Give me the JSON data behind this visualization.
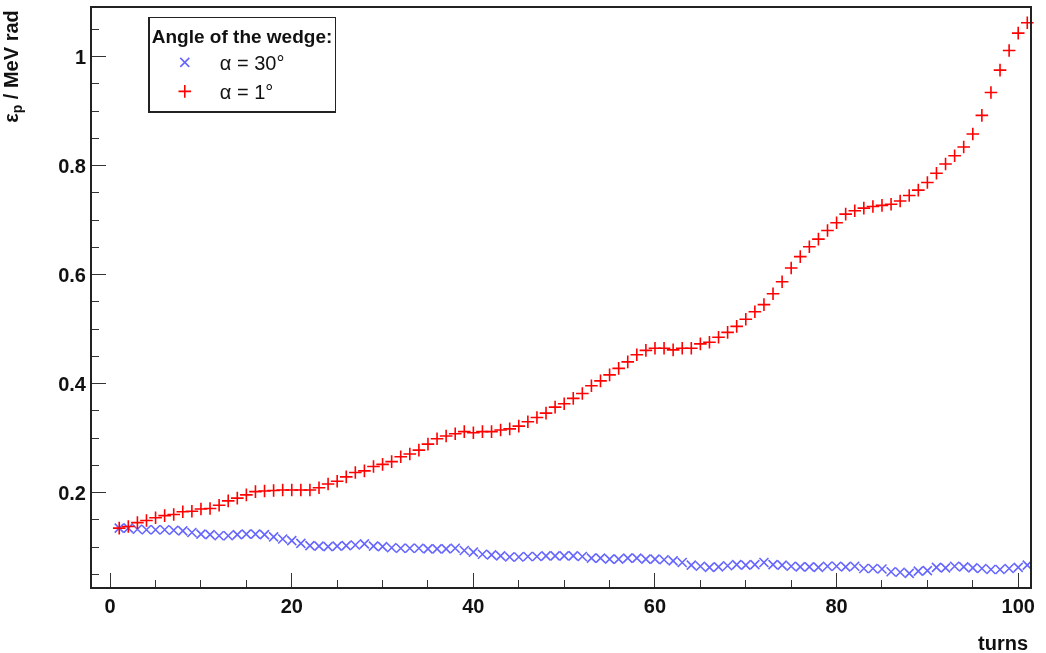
{
  "chart_data": {
    "type": "scatter",
    "xlabel": "turns",
    "ylabel": "ε$_{p}$ / MeV rad",
    "legend_title": "Angle of the wedge:",
    "xlim": [
      -2,
      101.3
    ],
    "ylim": [
      0.027,
      1.089
    ],
    "xticks": [
      0,
      {
        "value": 5,
        "label": null
      },
      {
        "value": 10,
        "label": null
      },
      {
        "value": 15,
        "label": null
      },
      20,
      {
        "value": 25,
        "label": null
      },
      {
        "value": 30,
        "label": null
      },
      {
        "value": 35,
        "label": null
      },
      40,
      {
        "value": 45,
        "label": null
      },
      {
        "value": 50,
        "label": null
      },
      {
        "value": 55,
        "label": null
      },
      60,
      {
        "value": 65,
        "label": null
      },
      {
        "value": 70,
        "label": null
      },
      {
        "value": 75,
        "label": null
      },
      80,
      {
        "value": 85,
        "label": null
      },
      {
        "value": 90,
        "label": null
      },
      {
        "value": 95,
        "label": null
      },
      100
    ],
    "yticks": [
      {
        "value": 0.05,
        "label": null
      },
      {
        "value": 0.1,
        "label": null
      },
      {
        "value": 0.15,
        "label": null
      },
      0.2,
      {
        "value": 0.25,
        "label": null
      },
      {
        "value": 0.3,
        "label": null
      },
      {
        "value": 0.35,
        "label": null
      },
      0.4,
      {
        "value": 0.45,
        "label": null
      },
      {
        "value": 0.5,
        "label": null
      },
      {
        "value": 0.55,
        "label": null
      },
      0.6,
      {
        "value": 0.65,
        "label": null
      },
      {
        "value": 0.7,
        "label": null
      },
      {
        "value": 0.75,
        "label": null
      },
      0.8,
      {
        "value": 0.85,
        "label": null
      },
      {
        "value": 0.9,
        "label": null
      },
      {
        "value": 0.95,
        "label": null
      },
      1,
      {
        "value": 1.05,
        "label": null
      }
    ],
    "grid": false,
    "legend": "top left",
    "x": [
      1,
      2,
      3,
      4,
      5,
      6,
      7,
      8,
      9,
      10,
      11,
      12,
      13,
      14,
      15,
      16,
      17,
      18,
      19,
      20,
      21,
      22,
      23,
      24,
      25,
      26,
      27,
      28,
      29,
      30,
      31,
      32,
      33,
      34,
      35,
      36,
      37,
      38,
      39,
      40,
      41,
      42,
      43,
      44,
      45,
      46,
      47,
      48,
      49,
      50,
      51,
      52,
      53,
      54,
      55,
      56,
      57,
      58,
      59,
      60,
      61,
      62,
      63,
      64,
      65,
      66,
      67,
      68,
      69,
      70,
      71,
      72,
      73,
      74,
      75,
      76,
      77,
      78,
      79,
      80,
      81,
      82,
      83,
      84,
      85,
      86,
      87,
      88,
      89,
      90,
      91,
      92,
      93,
      94,
      95,
      96,
      97,
      98,
      99,
      100,
      101
    ],
    "series": [
      {
        "name": "α = 30°",
        "color": "#6666ff",
        "marker": "x",
        "values": [
          0.135,
          0.135,
          0.133,
          0.132,
          0.132,
          0.132,
          0.131,
          0.13,
          0.127,
          0.124,
          0.123,
          0.121,
          0.121,
          0.123,
          0.124,
          0.124,
          0.123,
          0.119,
          0.115,
          0.112,
          0.107,
          0.103,
          0.102,
          0.101,
          0.102,
          0.103,
          0.104,
          0.106,
          0.102,
          0.101,
          0.099,
          0.098,
          0.098,
          0.098,
          0.097,
          0.097,
          0.097,
          0.098,
          0.094,
          0.091,
          0.087,
          0.086,
          0.084,
          0.082,
          0.082,
          0.083,
          0.083,
          0.084,
          0.084,
          0.084,
          0.084,
          0.083,
          0.08,
          0.08,
          0.078,
          0.078,
          0.08,
          0.08,
          0.078,
          0.078,
          0.077,
          0.075,
          0.072,
          0.067,
          0.065,
          0.063,
          0.064,
          0.066,
          0.068,
          0.067,
          0.068,
          0.072,
          0.068,
          0.067,
          0.065,
          0.064,
          0.064,
          0.063,
          0.065,
          0.065,
          0.064,
          0.065,
          0.061,
          0.061,
          0.06,
          0.055,
          0.054,
          0.052,
          0.056,
          0.057,
          0.063,
          0.062,
          0.065,
          0.064,
          0.062,
          0.061,
          0.059,
          0.059,
          0.061,
          0.063,
          0.067
        ]
      },
      {
        "name": "α = 1°",
        "color": "#ff0000",
        "marker": "cross",
        "values": [
          0.135,
          0.138,
          0.145,
          0.149,
          0.154,
          0.158,
          0.16,
          0.165,
          0.166,
          0.17,
          0.171,
          0.177,
          0.185,
          0.19,
          0.196,
          0.202,
          0.203,
          0.204,
          0.205,
          0.205,
          0.205,
          0.205,
          0.209,
          0.216,
          0.221,
          0.229,
          0.237,
          0.24,
          0.248,
          0.252,
          0.257,
          0.266,
          0.271,
          0.278,
          0.289,
          0.299,
          0.304,
          0.308,
          0.312,
          0.31,
          0.312,
          0.312,
          0.315,
          0.317,
          0.322,
          0.33,
          0.338,
          0.346,
          0.357,
          0.363,
          0.373,
          0.382,
          0.396,
          0.405,
          0.416,
          0.428,
          0.44,
          0.453,
          0.461,
          0.465,
          0.465,
          0.462,
          0.465,
          0.465,
          0.473,
          0.476,
          0.485,
          0.494,
          0.505,
          0.518,
          0.532,
          0.545,
          0.565,
          0.587,
          0.612,
          0.633,
          0.651,
          0.665,
          0.681,
          0.695,
          0.711,
          0.717,
          0.722,
          0.725,
          0.727,
          0.729,
          0.735,
          0.745,
          0.755,
          0.769,
          0.786,
          0.803,
          0.818,
          0.834,
          0.858,
          0.892,
          0.934,
          0.975,
          1.011,
          1.043,
          1.062
        ]
      }
    ]
  }
}
